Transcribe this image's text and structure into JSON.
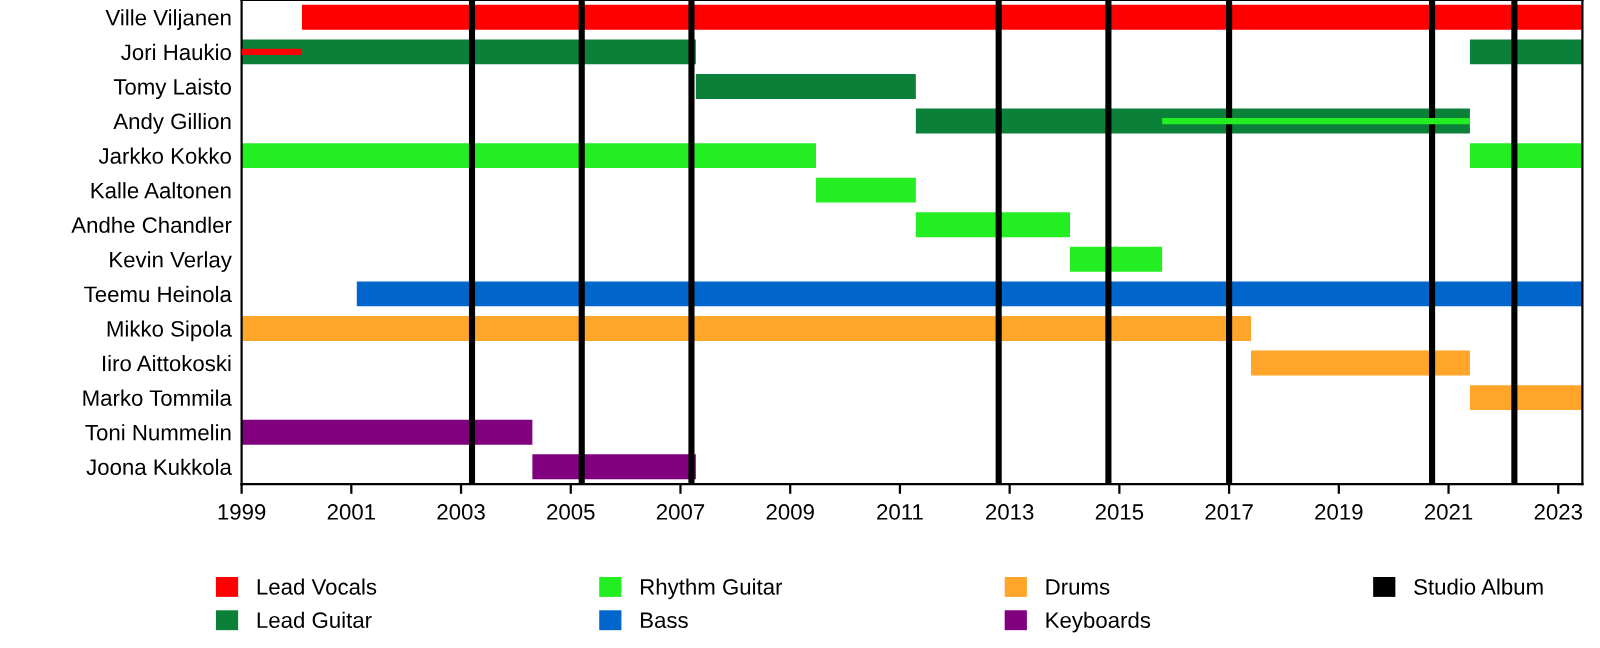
{
  "chart_data": {
    "type": "bar",
    "orientation": "horizontal",
    "categories": [
      "Ville Viljanen",
      "Jori Haukio",
      "Tomy Laisto",
      "Andy Gillion",
      "Jarkko Kokko",
      "Kalle Aaltonen",
      "Andhe Chandler",
      "Kevin Verlay",
      "Teemu Heinola",
      "Mikko Sipola",
      "Iiro Aittokoski",
      "Marko Tommila",
      "Toni Nummelin",
      "Joona Kukkola"
    ],
    "series": [
      {
        "name": "Lead Vocals",
        "color": "#ff0000",
        "base": [
          2000.1,
          1999,
          null,
          null,
          null,
          null,
          null,
          null,
          null,
          null,
          null,
          null,
          null,
          null
        ],
        "values": [
          23.34,
          1.1,
          null,
          null,
          null,
          null,
          null,
          null,
          null,
          null,
          null,
          null,
          null,
          null
        ]
      },
      {
        "name": "Lead Guitar",
        "color": "#0a8038",
        "base": [
          null,
          1999,
          2007.28,
          2011.29,
          null,
          null,
          null,
          null,
          null,
          null,
          null,
          null,
          null,
          null
        ],
        "values": [
          null,
          8.28,
          4.01,
          10.1,
          null,
          null,
          null,
          null,
          null,
          null,
          null,
          null,
          null,
          null
        ]
      },
      {
        "color": "#0a8038",
        "base": [
          null,
          2021.39,
          null,
          null,
          null,
          null,
          null,
          null,
          null,
          null,
          null,
          null,
          null,
          null
        ],
        "values": [
          null,
          2.05,
          null,
          null,
          null,
          null,
          null,
          null,
          null,
          null,
          null,
          null,
          null,
          null
        ]
      },
      {
        "name": "Rhythm Guitar",
        "color": "#22ee22",
        "base": [
          null,
          null,
          null,
          2015.78,
          1999,
          2009.47,
          2011.29,
          2014.1,
          null,
          null,
          null,
          null,
          null,
          null
        ],
        "values": [
          null,
          null,
          null,
          5.61,
          10.47,
          1.82,
          2.81,
          1.68,
          null,
          null,
          null,
          null,
          null,
          null
        ]
      },
      {
        "color": "#22ee22",
        "base": [
          null,
          null,
          null,
          null,
          2021.39,
          null,
          null,
          null,
          null,
          null,
          null,
          null,
          null,
          null
        ],
        "values": [
          null,
          null,
          null,
          null,
          2.05,
          null,
          null,
          null,
          null,
          null,
          null,
          null,
          null,
          null
        ]
      },
      {
        "name": "Bass",
        "color": "#0066cc",
        "base": [
          null,
          null,
          null,
          null,
          null,
          null,
          null,
          null,
          2001.1,
          null,
          null,
          null,
          null,
          null
        ],
        "values": [
          null,
          null,
          null,
          null,
          null,
          null,
          null,
          null,
          22.34,
          null,
          null,
          null,
          null,
          null
        ]
      },
      {
        "name": "Drums",
        "color": "#ffa52a",
        "base": [
          null,
          null,
          null,
          null,
          null,
          null,
          null,
          null,
          null,
          1999,
          2017.4,
          2021.39,
          null,
          null
        ],
        "values": [
          null,
          null,
          null,
          null,
          null,
          null,
          null,
          null,
          null,
          18.4,
          3.99,
          2.05,
          null,
          null
        ]
      },
      {
        "name": "Keyboards",
        "color": "#800080",
        "base": [
          null,
          null,
          null,
          null,
          null,
          null,
          null,
          null,
          null,
          null,
          null,
          null,
          1999,
          2004.3
        ],
        "values": [
          null,
          null,
          null,
          null,
          null,
          null,
          null,
          null,
          null,
          null,
          null,
          null,
          5.3,
          2.98
        ]
      }
    ],
    "ref_lines": [
      {
        "axis": "x",
        "value": 2003.2,
        "label": "Studio Album",
        "color": "#000000"
      },
      {
        "axis": "x",
        "value": 2005.2,
        "color": "#000000"
      },
      {
        "axis": "x",
        "value": 2007.2,
        "color": "#000000"
      },
      {
        "axis": "x",
        "value": 2012.8,
        "color": "#000000"
      },
      {
        "axis": "x",
        "value": 2014.8,
        "color": "#000000"
      },
      {
        "axis": "x",
        "value": 2017.0,
        "color": "#000000"
      },
      {
        "axis": "x",
        "value": 2020.7,
        "color": "#000000"
      },
      {
        "axis": "x",
        "value": 2022.2,
        "color": "#000000"
      }
    ],
    "xlim": [
      1999,
      2023.44
    ],
    "xticks": [
      1999,
      2001,
      2003,
      2005,
      2007,
      2009,
      2011,
      2013,
      2015,
      2017,
      2019,
      2021,
      2023
    ],
    "legend": "bottom",
    "grid": false
  }
}
